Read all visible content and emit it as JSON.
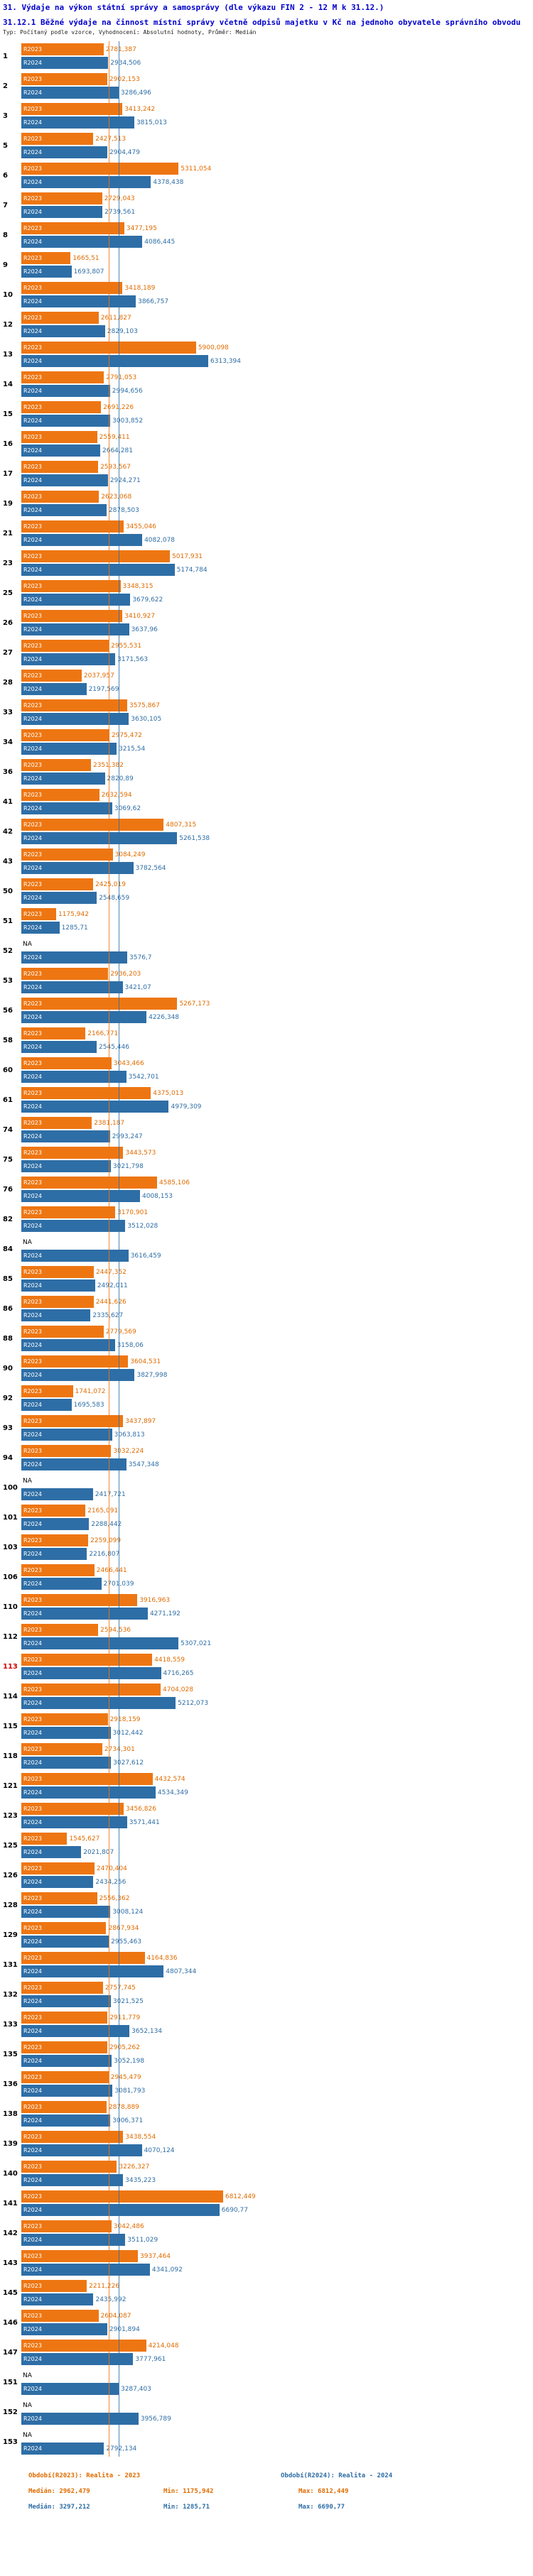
{
  "header": {
    "title": "31. Výdaje na výkon státní správy a samosprávy (dle výkazu FIN 2 - 12 M k 31.12.)",
    "subtitle": "31.12.1 Běžné výdaje na činnost místní správy včetně odpisů majetku v Kč na jednoho obyvatele správního obvodu",
    "meta": "Typ: Počítaný podle vzorce, Vyhodnocení: Absolutní hodnoty, Průměr: Medián"
  },
  "chart_data": {
    "type": "bar",
    "orientation": "horizontal",
    "unit": "Kč na obyvatele",
    "series_labels": [
      "R2023",
      "R2024"
    ],
    "colors": {
      "r2023": "#ee7612",
      "r2024": "#2e6ea6",
      "highlight_row": "#d40000"
    },
    "xlim": [
      0,
      17000
    ],
    "median_lines": [
      {
        "series": "R2023",
        "value": 2962.479
      },
      {
        "series": "R2024",
        "value": 3297.212
      }
    ],
    "rows": [
      {
        "id": "1",
        "r2023": "2781,387",
        "r2024": "2934,506"
      },
      {
        "id": "2",
        "r2023": "2902,153",
        "r2024": "3286,496"
      },
      {
        "id": "3",
        "r2023": "3413,242",
        "r2024": "3815,013"
      },
      {
        "id": "5",
        "r2023": "2427,513",
        "r2024": "2904,479"
      },
      {
        "id": "6",
        "r2023": "5311,054",
        "r2024": "4378,438"
      },
      {
        "id": "7",
        "r2023": "2729,043",
        "r2024": "2739,561"
      },
      {
        "id": "8",
        "r2023": "3477,195",
        "r2024": "4086,445"
      },
      {
        "id": "9",
        "r2023": "1665,51",
        "r2024": "1693,807"
      },
      {
        "id": "10",
        "r2023": "3418,189",
        "r2024": "3866,757"
      },
      {
        "id": "12",
        "r2023": "2611,827",
        "r2024": "2829,103"
      },
      {
        "id": "13",
        "r2023": "5900,098",
        "r2024": "6313,394"
      },
      {
        "id": "14",
        "r2023": "2791,053",
        "r2024": "2994,656"
      },
      {
        "id": "15",
        "r2023": "2691,226",
        "r2024": "3003,852"
      },
      {
        "id": "16",
        "r2023": "2559,411",
        "r2024": "2664,281"
      },
      {
        "id": "17",
        "r2023": "2593,567",
        "r2024": "2924,271"
      },
      {
        "id": "19",
        "r2023": "2623,068",
        "r2024": "2878,503"
      },
      {
        "id": "21",
        "r2023": "3455,046",
        "r2024": "4082,078"
      },
      {
        "id": "23",
        "r2023": "5017,931",
        "r2024": "5174,784"
      },
      {
        "id": "25",
        "r2023": "3348,315",
        "r2024": "3679,622"
      },
      {
        "id": "26",
        "r2023": "3410,927",
        "r2024": "3637,96"
      },
      {
        "id": "27",
        "r2023": "2955,531",
        "r2024": "3171,563"
      },
      {
        "id": "28",
        "r2023": "2037,957",
        "r2024": "2197,569"
      },
      {
        "id": "33",
        "r2023": "3575,867",
        "r2024": "3630,105"
      },
      {
        "id": "34",
        "r2023": "2975,472",
        "r2024": "3215,54"
      },
      {
        "id": "36",
        "r2023": "2351,382",
        "r2024": "2820,89"
      },
      {
        "id": "41",
        "r2023": "2632,594",
        "r2024": "3069,62"
      },
      {
        "id": "42",
        "r2023": "4807,315",
        "r2024": "5261,538"
      },
      {
        "id": "43",
        "r2023": "3084,249",
        "r2024": "3782,564"
      },
      {
        "id": "50",
        "r2023": "2425,019",
        "r2024": "2548,659"
      },
      {
        "id": "51",
        "r2023": "1175,942",
        "r2024": "1285,71"
      },
      {
        "id": "52",
        "r2023": "NA",
        "r2024": "3576,7"
      },
      {
        "id": "53",
        "r2023": "2936,203",
        "r2024": "3421,07"
      },
      {
        "id": "56",
        "r2023": "5267,173",
        "r2024": "4226,348"
      },
      {
        "id": "58",
        "r2023": "2166,771",
        "r2024": "2545,446"
      },
      {
        "id": "60",
        "r2023": "3043,466",
        "r2024": "3542,701"
      },
      {
        "id": "61",
        "r2023": "4375,013",
        "r2024": "4979,309"
      },
      {
        "id": "74",
        "r2023": "2381,187",
        "r2024": "2993,247"
      },
      {
        "id": "75",
        "r2023": "3443,573",
        "r2024": "3021,798"
      },
      {
        "id": "76",
        "r2023": "4585,106",
        "r2024": "4008,153"
      },
      {
        "id": "82",
        "r2023": "3170,901",
        "r2024": "3512,028"
      },
      {
        "id": "84",
        "r2023": "NA",
        "r2024": "3616,459"
      },
      {
        "id": "85",
        "r2023": "2447,352",
        "r2024": "2492,011"
      },
      {
        "id": "86",
        "r2023": "2441,626",
        "r2024": "2335,627"
      },
      {
        "id": "88",
        "r2023": "2779,569",
        "r2024": "3158,06"
      },
      {
        "id": "90",
        "r2023": "3604,531",
        "r2024": "3827,998"
      },
      {
        "id": "92",
        "r2023": "1741,072",
        "r2024": "1695,583"
      },
      {
        "id": "93",
        "r2023": "3437,897",
        "r2024": "3063,813"
      },
      {
        "id": "94",
        "r2023": "3032,224",
        "r2024": "3547,348"
      },
      {
        "id": "100",
        "r2023": "NA",
        "r2024": "2417,721"
      },
      {
        "id": "101",
        "r2023": "2165,091",
        "r2024": "2288,442"
      },
      {
        "id": "103",
        "r2023": "2259,099",
        "r2024": "2216,807"
      },
      {
        "id": "106",
        "r2023": "2466,441",
        "r2024": "2701,039"
      },
      {
        "id": "110",
        "r2023": "3916,963",
        "r2024": "4271,192"
      },
      {
        "id": "112",
        "r2023": "2594,536",
        "r2024": "5307,021"
      },
      {
        "id": "113",
        "r2023": "4418,559",
        "r2024": "4716,265",
        "highlight": true
      },
      {
        "id": "114",
        "r2023": "4704,028",
        "r2024": "5212,073"
      },
      {
        "id": "115",
        "r2023": "2918,159",
        "r2024": "3012,442"
      },
      {
        "id": "118",
        "r2023": "2734,301",
        "r2024": "3027,612"
      },
      {
        "id": "121",
        "r2023": "4432,574",
        "r2024": "4534,349"
      },
      {
        "id": "123",
        "r2023": "3456,826",
        "r2024": "3571,441"
      },
      {
        "id": "125",
        "r2023": "1545,627",
        "r2024": "2021,807"
      },
      {
        "id": "126",
        "r2023": "2470,404",
        "r2024": "2434,256"
      },
      {
        "id": "128",
        "r2023": "2556,362",
        "r2024": "3008,124"
      },
      {
        "id": "129",
        "r2023": "2867,934",
        "r2024": "2955,463"
      },
      {
        "id": "131",
        "r2023": "4164,836",
        "r2024": "4807,344"
      },
      {
        "id": "132",
        "r2023": "2757,745",
        "r2024": "3021,525"
      },
      {
        "id": "133",
        "r2023": "2911,779",
        "r2024": "3652,134"
      },
      {
        "id": "135",
        "r2023": "2905,262",
        "r2024": "3052,198"
      },
      {
        "id": "136",
        "r2023": "2945,479",
        "r2024": "3081,793"
      },
      {
        "id": "138",
        "r2023": "2878,889",
        "r2024": "3006,371"
      },
      {
        "id": "139",
        "r2023": "3438,554",
        "r2024": "4070,124"
      },
      {
        "id": "140",
        "r2023": "3226,327",
        "r2024": "3435,223"
      },
      {
        "id": "141",
        "r2023": "6812,449",
        "r2024": "6690,77"
      },
      {
        "id": "142",
        "r2023": "3042,486",
        "r2024": "3511,029"
      },
      {
        "id": "143",
        "r2023": "3937,464",
        "r2024": "4341,092"
      },
      {
        "id": "145",
        "r2023": "2211,226",
        "r2024": "2435,992"
      },
      {
        "id": "146",
        "r2023": "2604,087",
        "r2024": "2901,894"
      },
      {
        "id": "147",
        "r2023": "4214,048",
        "r2024": "3777,961"
      },
      {
        "id": "151",
        "r2023": "NA",
        "r2024": "3287,403"
      },
      {
        "id": "152",
        "r2023": "NA",
        "r2024": "3956,789"
      },
      {
        "id": "153",
        "r2023": "NA",
        "r2024": "2792,134"
      }
    ],
    "legend": [
      {
        "label": "Období(R2023): Realita - 2023",
        "color": "#ee7612"
      },
      {
        "label": "Období(R2024): Realita - 2024",
        "color": "#2e6ea6"
      }
    ],
    "stats": [
      {
        "median": "Medián: 2962,479",
        "min": "Min: 1175,942",
        "max": "Max: 6812,449"
      },
      {
        "median": "Medián: 3297,212",
        "min": "Min: 1285,71",
        "max": "Max: 6690,77"
      }
    ]
  }
}
